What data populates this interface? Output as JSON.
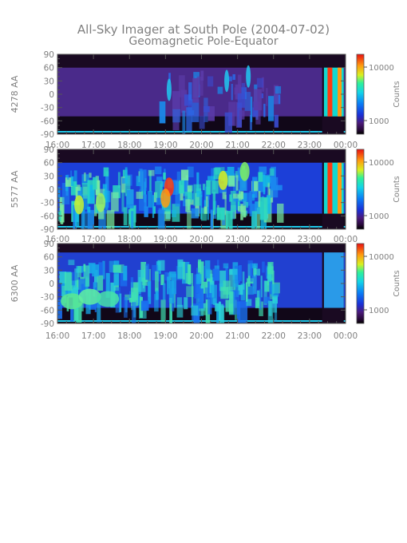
{
  "title": "All-Sky Imager at South Pole (2004-07-02)",
  "subtitle": "Geomagnetic Pole-Equator",
  "colors": {
    "text": "#7f7f7f",
    "axis": "#555555",
    "background": "#ffffff"
  },
  "chart_data": [
    {
      "type": "heatmap",
      "ylabel": "4278 AA",
      "colorbar_label": "Counts",
      "colorbar_ticks": [
        "10000",
        "1000"
      ],
      "colorbar_scale": "log",
      "x_ticks": [
        "16:00",
        "17:00",
        "18:00",
        "19:00",
        "20:00",
        "21:00",
        "22:00",
        "23:00",
        "00:00"
      ],
      "y_ticks": [
        "90",
        "60",
        "30",
        "0",
        "-30",
        "-60",
        "-90"
      ],
      "xlim": [
        "16:00",
        "00:00"
      ],
      "ylim": [
        -90,
        90
      ]
    },
    {
      "type": "heatmap",
      "ylabel": "5577 AA",
      "colorbar_label": "Counts",
      "colorbar_ticks": [
        "10000",
        "1000"
      ],
      "colorbar_scale": "log",
      "x_ticks": [
        "16:00",
        "17:00",
        "18:00",
        "19:00",
        "20:00",
        "21:00",
        "22:00",
        "23:00",
        "00:00"
      ],
      "y_ticks": [
        "90",
        "60",
        "30",
        "0",
        "-30",
        "-60",
        "-90"
      ],
      "xlim": [
        "16:00",
        "00:00"
      ],
      "ylim": [
        -90,
        90
      ]
    },
    {
      "type": "heatmap",
      "ylabel": "6300 AA",
      "colorbar_label": "Counts",
      "colorbar_ticks": [
        "10000",
        "1000"
      ],
      "colorbar_scale": "log",
      "x_ticks": [
        "16:00",
        "17:00",
        "18:00",
        "19:00",
        "20:00",
        "21:00",
        "22:00",
        "23:00",
        "00:00"
      ],
      "y_ticks": [
        "90",
        "60",
        "30",
        "0",
        "-30",
        "-60",
        "-90"
      ],
      "xlim": [
        "16:00",
        "00:00"
      ],
      "ylim": [
        -90,
        90
      ]
    }
  ]
}
